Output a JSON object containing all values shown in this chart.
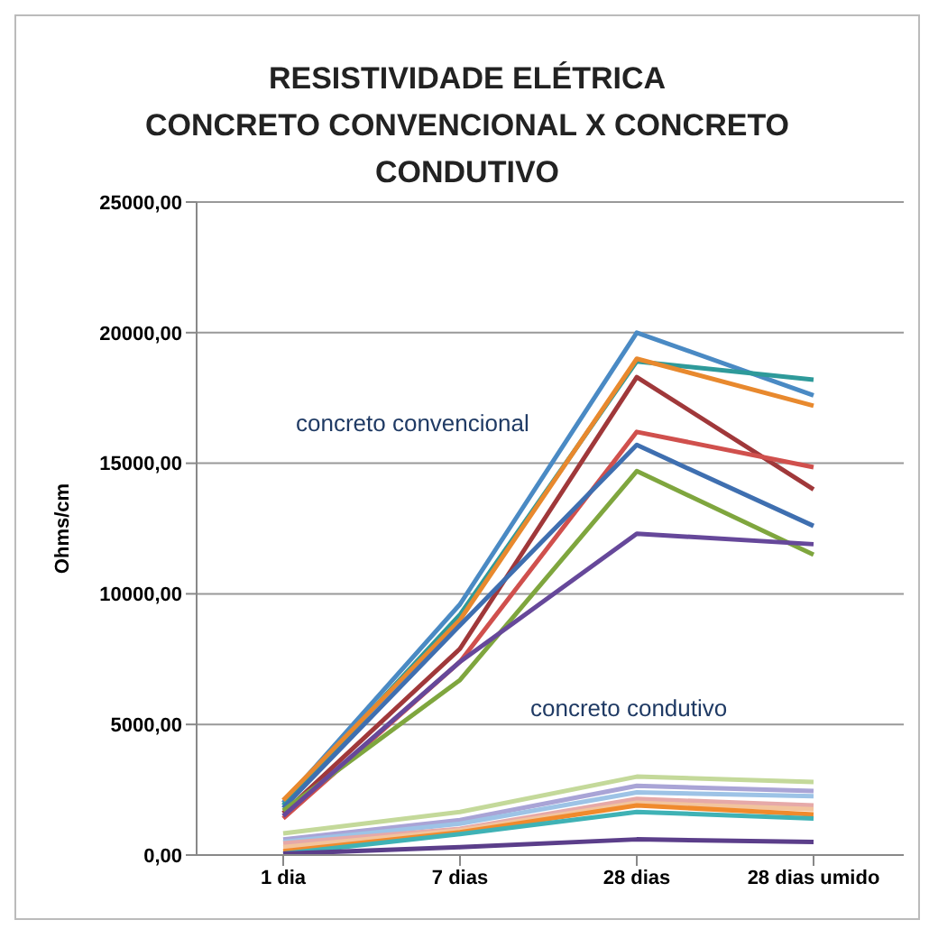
{
  "chart_data": {
    "type": "line",
    "title": "RESISTIVIDADE ELÉTRICA\nCONCRETO CONVENCIONAL X CONCRETO\nCONDUTIVO",
    "ylabel": "Ohms/cm",
    "categories": [
      "1 dia",
      "7 dias",
      "28 dias",
      "28 dias umido"
    ],
    "series": [
      {
        "color": "#4a8ac4",
        "values": [
          2000,
          9600,
          20000,
          17600
        ]
      },
      {
        "color": "#2e9a9a",
        "values": [
          1900,
          9200,
          18900,
          18200
        ]
      },
      {
        "color": "#e8892e",
        "values": [
          2100,
          9000,
          19000,
          17200
        ]
      },
      {
        "color": "#a0383a",
        "values": [
          1600,
          7900,
          18300,
          14000
        ]
      },
      {
        "color": "#d0504d",
        "values": [
          1400,
          7400,
          16200,
          14850
        ]
      },
      {
        "color": "#3f6fb0",
        "values": [
          1800,
          8800,
          15700,
          12600
        ]
      },
      {
        "color": "#7fa63e",
        "values": [
          1700,
          6700,
          14700,
          11500
        ]
      },
      {
        "color": "#66489a",
        "values": [
          1500,
          7400,
          12300,
          11900
        ]
      },
      {
        "color": "#c4d99a",
        "values": [
          830,
          1650,
          3000,
          2800
        ]
      },
      {
        "color": "#a9a4d6",
        "values": [
          600,
          1340,
          2650,
          2450
        ]
      },
      {
        "color": "#9dc3e6",
        "values": [
          500,
          1200,
          2400,
          2250
        ]
      },
      {
        "color": "#e6a9a8",
        "values": [
          450,
          1000,
          2150,
          1900
        ]
      },
      {
        "color": "#f2c49d",
        "values": [
          300,
          950,
          2000,
          1750
        ]
      },
      {
        "color": "#f08a2c",
        "values": [
          150,
          870,
          1900,
          1550
        ]
      },
      {
        "color": "#3fb2b5",
        "values": [
          50,
          800,
          1650,
          1400
        ]
      },
      {
        "color": "#5b3e8a",
        "values": [
          50,
          300,
          600,
          500
        ]
      }
    ],
    "ylim": [
      0,
      25000
    ],
    "yticks": [
      {
        "value": 0,
        "label": "0,00"
      },
      {
        "value": 5000,
        "label": "5000,00"
      },
      {
        "value": 10000,
        "label": "10000,00"
      },
      {
        "value": 15000,
        "label": "15000,00"
      },
      {
        "value": 20000,
        "label": "20000,00"
      },
      {
        "value": 25000,
        "label": "25000,00"
      }
    ],
    "grid": "y",
    "legend": false,
    "marker": "none",
    "line_style": "solid",
    "annotations": [
      "concreto convencional",
      "concreto condutivo"
    ]
  }
}
